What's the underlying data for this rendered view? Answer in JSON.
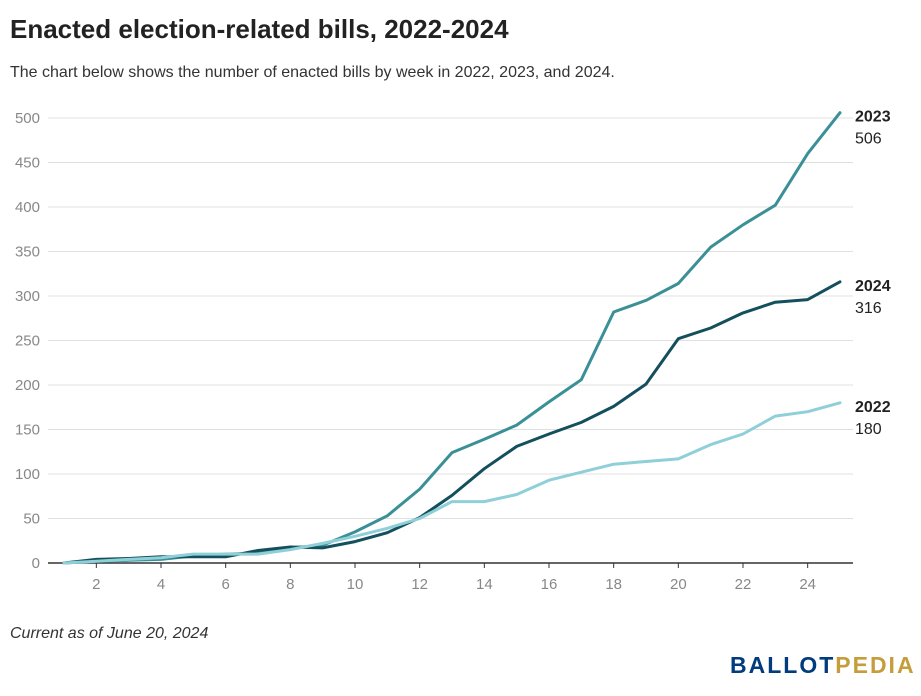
{
  "title": "Enacted election-related bills, 2022-2024",
  "subtitle": "The chart below shows the number of enacted bills by week in 2022, 2023, and 2024.",
  "footnote": "Current as of June 20, 2024",
  "logo": {
    "part1": "BALLOT",
    "part2": "PEDIA"
  },
  "colors": {
    "2022": "#8ecfd8",
    "2023": "#3a9096",
    "2024": "#134f5c",
    "grid": "#e0e0e0",
    "axis": "#333333",
    "tick_text": "#888888"
  },
  "chart_data": {
    "type": "line",
    "x": [
      1,
      2,
      3,
      4,
      5,
      6,
      7,
      8,
      9,
      10,
      11,
      12,
      13,
      14,
      15,
      16,
      17,
      18,
      19,
      20,
      21,
      22,
      23,
      24,
      25
    ],
    "xlim": [
      1,
      25
    ],
    "xticks": [
      2,
      4,
      6,
      8,
      10,
      12,
      14,
      16,
      18,
      20,
      22,
      24
    ],
    "ylim": [
      0,
      500
    ],
    "yticks": [
      0,
      50,
      100,
      150,
      200,
      250,
      300,
      350,
      400,
      450,
      500
    ],
    "grid": "horizontal",
    "legend": "end-of-line labels",
    "series": [
      {
        "name": "2023",
        "end_label": "506",
        "values": [
          0,
          2,
          3,
          4,
          8,
          10,
          11,
          17,
          20,
          35,
          53,
          83,
          124,
          139,
          155,
          181,
          206,
          282,
          295,
          314,
          355,
          380,
          402,
          460,
          506
        ]
      },
      {
        "name": "2024",
        "end_label": "316",
        "values": [
          0,
          4,
          5,
          7,
          7,
          7,
          14,
          18,
          17,
          24,
          34,
          51,
          76,
          106,
          131,
          145,
          158,
          176,
          201,
          252,
          264,
          281,
          293,
          296,
          316
        ]
      },
      {
        "name": "2022",
        "end_label": "180",
        "values": [
          0,
          2,
          4,
          6,
          10,
          10,
          10,
          15,
          22,
          30,
          39,
          50,
          69,
          69,
          77,
          93,
          102,
          111,
          114,
          117,
          133,
          145,
          165,
          170,
          180
        ]
      }
    ]
  }
}
